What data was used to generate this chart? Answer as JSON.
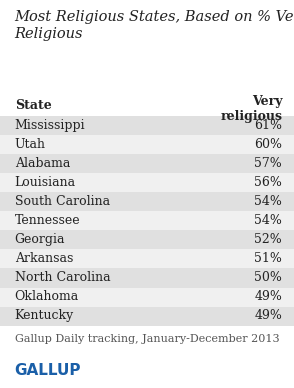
{
  "title": "Most Religious States, Based on % Very\nReligious",
  "col_header_state": "State",
  "col_header_value": "Very\nreligious",
  "states": [
    "Mississippi",
    "Utah",
    "Alabama",
    "Louisiana",
    "South Carolina",
    "Tennessee",
    "Georgia",
    "Arkansas",
    "North Carolina",
    "Oklahoma",
    "Kentucky"
  ],
  "values": [
    "61%",
    "60%",
    "57%",
    "56%",
    "54%",
    "54%",
    "52%",
    "51%",
    "50%",
    "49%",
    "49%"
  ],
  "footer": "Gallup Daily tracking, January-December 2013",
  "brand": "GALLUP",
  "bg_color": "#ffffff",
  "row_shaded": "#e0e0e0",
  "row_unshaded": "#f0f0f0",
  "title_fontsize": 10.5,
  "header_fontsize": 9,
  "row_fontsize": 9,
  "footer_fontsize": 8,
  "brand_fontsize": 11
}
